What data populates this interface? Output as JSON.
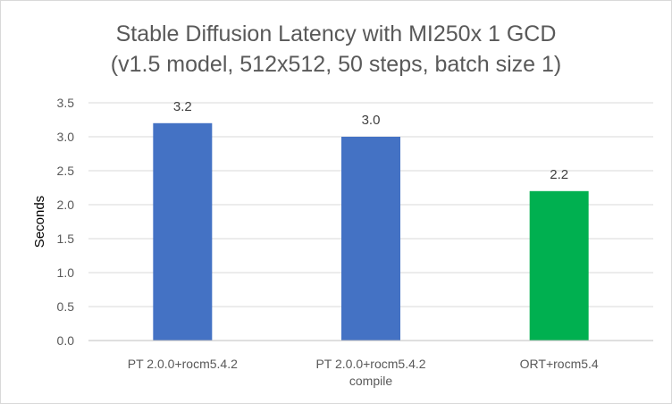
{
  "chart_data": {
    "type": "bar",
    "title": [
      "Stable Diffusion Latency with MI250x 1 GCD",
      "(v1.5 model, 512x512, 50 steps, batch size 1)"
    ],
    "categories": [
      [
        "PT 2.0.0+rocm5.4.2"
      ],
      [
        "PT 2.0.0+rocm5.4.2",
        "compile"
      ],
      [
        "ORT+rocm5.4"
      ]
    ],
    "values": [
      3.2,
      3.0,
      2.2
    ],
    "data_labels": [
      "3.2",
      "3.0",
      "2.2"
    ],
    "bar_colors": [
      "#4472c4",
      "#4472c4",
      "#00b050"
    ],
    "xlabel": "",
    "ylabel": "Seconds",
    "ylim": [
      0,
      3.5
    ],
    "yticks": [
      "0.0",
      "0.5",
      "1.0",
      "1.5",
      "2.0",
      "2.5",
      "3.0",
      "3.5"
    ],
    "grid": "horizontal",
    "legend": "none"
  }
}
